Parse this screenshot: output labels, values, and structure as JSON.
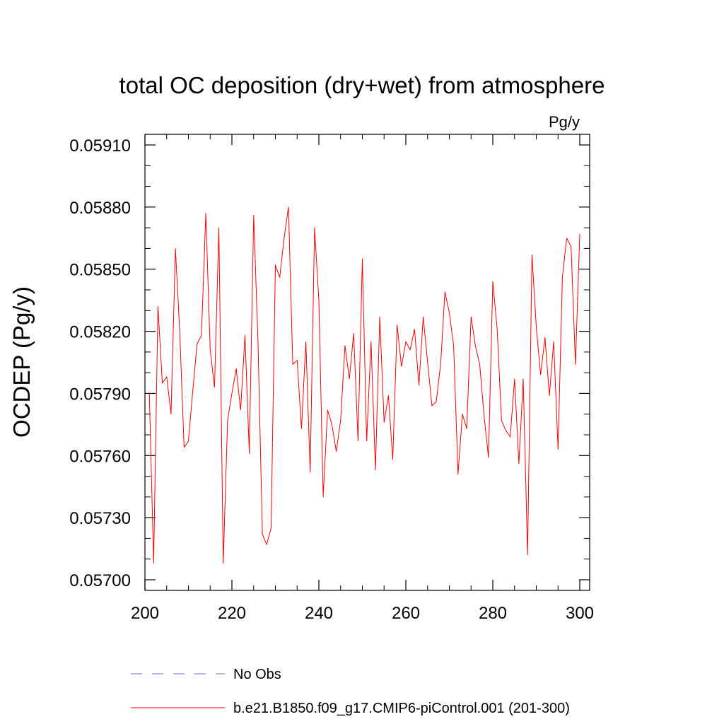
{
  "chart_data": {
    "type": "line",
    "title": "total OC deposition (dry+wet) from atmosphere",
    "units_label": "Pg/y",
    "ylabel": "OCDEP  (Pg/y)",
    "xlabel": "",
    "xlim": [
      200,
      300
    ],
    "ylim": [
      0.057,
      0.0591
    ],
    "x_ticks": [
      200,
      220,
      240,
      260,
      280,
      300
    ],
    "x_tick_labels": [
      "200",
      "220",
      "240",
      "260",
      "280",
      "300"
    ],
    "y_ticks": [
      0.057,
      0.0573,
      0.0576,
      0.0579,
      0.0582,
      0.0585,
      0.0588,
      0.0591
    ],
    "y_tick_labels": [
      "0.05700",
      "0.05730",
      "0.05760",
      "0.05790",
      "0.05820",
      "0.05850",
      "0.05880",
      "0.05910"
    ],
    "grid": false,
    "legend_position": "bottom",
    "legend": [
      {
        "label": "No Obs",
        "color": "#7b68c8",
        "style": "dashed"
      },
      {
        "label": "b.e21.B1850.f09_g17.CMIP6-piControl.001 (201-300)",
        "color": "#ff0000",
        "style": "solid"
      }
    ],
    "series": [
      {
        "name": "b.e21.B1850.f09_g17.CMIP6-piControl.001 (201-300)",
        "color": "#ff0000",
        "x": [
          201,
          202,
          203,
          204,
          205,
          206,
          207,
          208,
          209,
          210,
          211,
          212,
          213,
          214,
          215,
          216,
          217,
          218,
          219,
          220,
          221,
          222,
          223,
          224,
          225,
          226,
          227,
          228,
          229,
          230,
          231,
          232,
          233,
          234,
          235,
          236,
          237,
          238,
          239,
          240,
          241,
          242,
          243,
          244,
          245,
          246,
          247,
          248,
          249,
          250,
          251,
          252,
          253,
          254,
          255,
          256,
          257,
          258,
          259,
          260,
          261,
          262,
          263,
          264,
          265,
          266,
          267,
          268,
          269,
          270,
          271,
          272,
          273,
          274,
          275,
          276,
          277,
          278,
          279,
          280,
          281,
          282,
          283,
          284,
          285,
          286,
          287,
          288,
          289,
          290,
          291,
          292,
          293,
          294,
          295,
          296,
          297,
          298,
          299,
          300
        ],
        "y": [
          0.0579,
          0.05708,
          0.05832,
          0.05795,
          0.05798,
          0.0578,
          0.0586,
          0.0582,
          0.05764,
          0.05767,
          0.05791,
          0.05814,
          0.05818,
          0.05877,
          0.05811,
          0.05793,
          0.0587,
          0.05708,
          0.05777,
          0.0579,
          0.05802,
          0.05782,
          0.05818,
          0.05761,
          0.05876,
          0.05815,
          0.05722,
          0.05717,
          0.05725,
          0.05852,
          0.05846,
          0.05865,
          0.0588,
          0.05804,
          0.05806,
          0.05773,
          0.05815,
          0.05752,
          0.0587,
          0.05835,
          0.0574,
          0.05782,
          0.05775,
          0.05762,
          0.05777,
          0.05813,
          0.05797,
          0.05819,
          0.05767,
          0.05855,
          0.05767,
          0.05815,
          0.05753,
          0.05827,
          0.05776,
          0.05789,
          0.05758,
          0.05823,
          0.05803,
          0.05815,
          0.05811,
          0.05821,
          0.05794,
          0.05827,
          0.05805,
          0.05784,
          0.05786,
          0.05804,
          0.05839,
          0.05829,
          0.05813,
          0.05751,
          0.0578,
          0.05773,
          0.05827,
          0.05813,
          0.05804,
          0.05779,
          0.05759,
          0.05844,
          0.05821,
          0.05777,
          0.05772,
          0.05769,
          0.05797,
          0.05756,
          0.05797,
          0.05712,
          0.05857,
          0.05822,
          0.05799,
          0.05817,
          0.05789,
          0.05815,
          0.05763,
          0.05846,
          0.05865,
          0.05861,
          0.05804,
          0.05867
        ]
      }
    ]
  }
}
